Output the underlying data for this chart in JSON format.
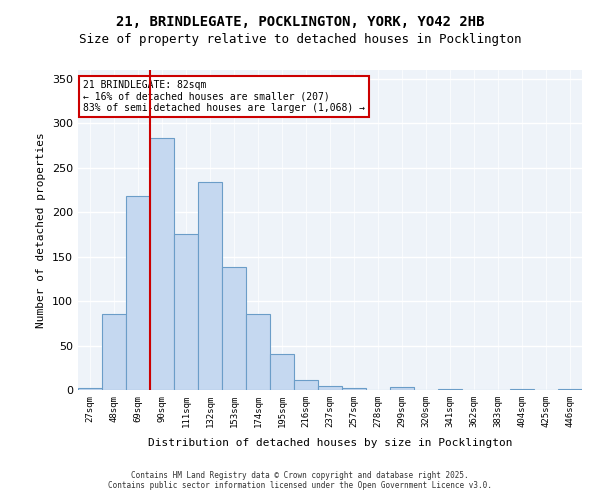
{
  "title_line1": "21, BRINDLEGATE, POCKLINGTON, YORK, YO42 2HB",
  "title_line2": "Size of property relative to detached houses in Pocklington",
  "xlabel": "Distribution of detached houses by size in Pocklington",
  "ylabel": "Number of detached properties",
  "categories": [
    "27sqm",
    "48sqm",
    "69sqm",
    "90sqm",
    "111sqm",
    "132sqm",
    "153sqm",
    "174sqm",
    "195sqm",
    "216sqm",
    "237sqm",
    "257sqm",
    "278sqm",
    "299sqm",
    "320sqm",
    "341sqm",
    "362sqm",
    "383sqm",
    "404sqm",
    "425sqm",
    "446sqm"
  ],
  "values": [
    2,
    86,
    218,
    284,
    175,
    234,
    138,
    85,
    40,
    11,
    4,
    2,
    0,
    3,
    0,
    1,
    0,
    0,
    1,
    0,
    1
  ],
  "bar_color": "#c5d8f0",
  "bar_edge_color": "#6b9dc8",
  "vline_x": 1,
  "vline_color": "#cc0000",
  "annotation_text": "21 BRINDLEGATE: 82sqm\n← 16% of detached houses are smaller (207)\n83% of semi-detached houses are larger (1,068) →",
  "annotation_box_color": "#cc0000",
  "ylim": [
    0,
    360
  ],
  "yticks": [
    0,
    50,
    100,
    150,
    200,
    250,
    300,
    350
  ],
  "background_color": "#eef3f9",
  "footer_line1": "Contains HM Land Registry data © Crown copyright and database right 2025.",
  "footer_line2": "Contains public sector information licensed under the Open Government Licence v3.0."
}
